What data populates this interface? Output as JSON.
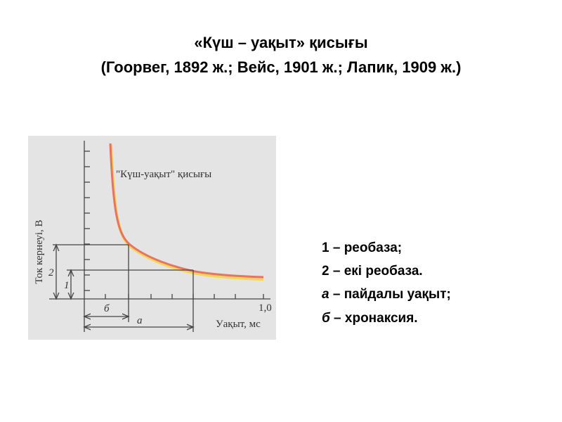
{
  "title": {
    "line1": "«Күш – уақыт» қисығы",
    "line2": "(Гоорвег, 1892 ж.; Вейс, 1901 ж.; Лапик, 1909 ж.)"
  },
  "figure": {
    "curve_label": "\"Күш-уақыт\" қисығы",
    "y_axis_label": "Ток кернеуі, В",
    "x_axis_label": "Уақыт, мс",
    "x_tick": "1,0",
    "markers": {
      "level_2": "2",
      "level_1": "1",
      "chronaxie": "б",
      "useful_time": "а"
    }
  },
  "legend": {
    "items": [
      {
        "key": "1",
        "text": " – реобаза;"
      },
      {
        "key": "2",
        "text": " – екі реобаза."
      },
      {
        "key": "а",
        "text": " – пайдалы уақыт;"
      },
      {
        "key": "б",
        "text": " – хронаксия."
      }
    ]
  }
}
